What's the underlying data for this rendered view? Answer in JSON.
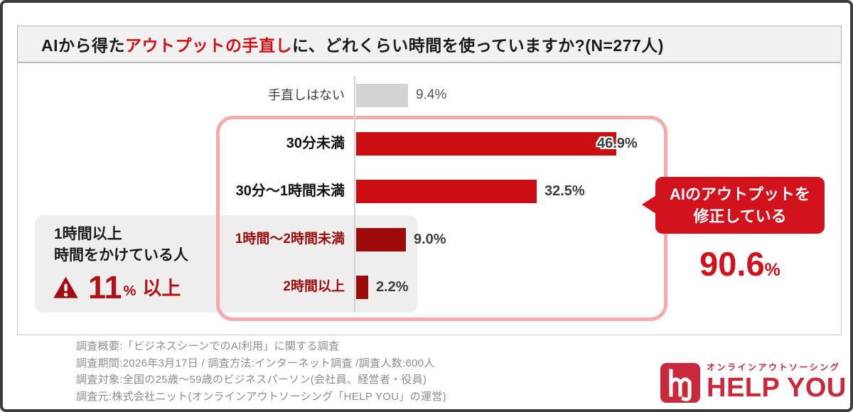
{
  "title": {
    "prefix": "AIから得た",
    "highlight": "アウトプットの手直し",
    "suffix": "に、どれくらい時間を使っていますか?(N=277人)"
  },
  "chart_data": {
    "type": "bar",
    "orientation": "horizontal",
    "title": "AIから得たアウトプットの手直しに、どれくらい時間を使っていますか?",
    "sample_size": "N=277人",
    "categories": [
      "手直しはない",
      "30分未満",
      "30分〜1時間未満",
      "1時間〜2時間未満",
      "2時間以上"
    ],
    "values": [
      9.4,
      46.9,
      32.5,
      9.0,
      2.2
    ],
    "value_labels": [
      "9.4%",
      "46.9%",
      "32.5%",
      "9.0%",
      "2.2%"
    ],
    "bar_colors": [
      "#d3d3d3",
      "#cc0e13",
      "#cc0e13",
      "#9c0a0a",
      "#9c0a0a"
    ],
    "xlim": [
      0,
      50
    ],
    "grid": false,
    "emphasis_group": [
      "30分未満",
      "30分〜1時間未満",
      "1時間〜2時間未満",
      "2時間以上"
    ]
  },
  "highlight_box": {
    "line1": "1時間以上",
    "line2": "時間をかけている人",
    "icon": "warning-triangle",
    "stat": "11",
    "stat_unit": "%",
    "stat_suffix": "以上"
  },
  "callout": {
    "line1": "AIのアウトプットを",
    "line2": "修正している",
    "stat": "90.6",
    "stat_unit": "%"
  },
  "footer": {
    "lines": [
      "調査概要:「ビジネスシーンでのAI利用」に関する調査",
      "調査期間:2026年3月17日 / 調査方法:インターネット調査 /調査人数:600人",
      "調査対象:全国の25歳〜59歳のビジネスパーソン(会社員、経営者・役員)",
      "調査元:株式会社ニット(オンラインアウトソーシング「HELP YOU」の運営)"
    ]
  },
  "logo": {
    "tagline": "オンラインアウトソーシング",
    "name": "HELP YOU"
  },
  "colors": {
    "main_red": "#cc0e13",
    "dark_red": "#9c0a0a",
    "callout_red": "#d2121c",
    "pink_border": "#f7a9ae",
    "gray_bar": "#d3d3d3",
    "gray_band": "#efeeee",
    "logo_red": "#c9293a"
  }
}
